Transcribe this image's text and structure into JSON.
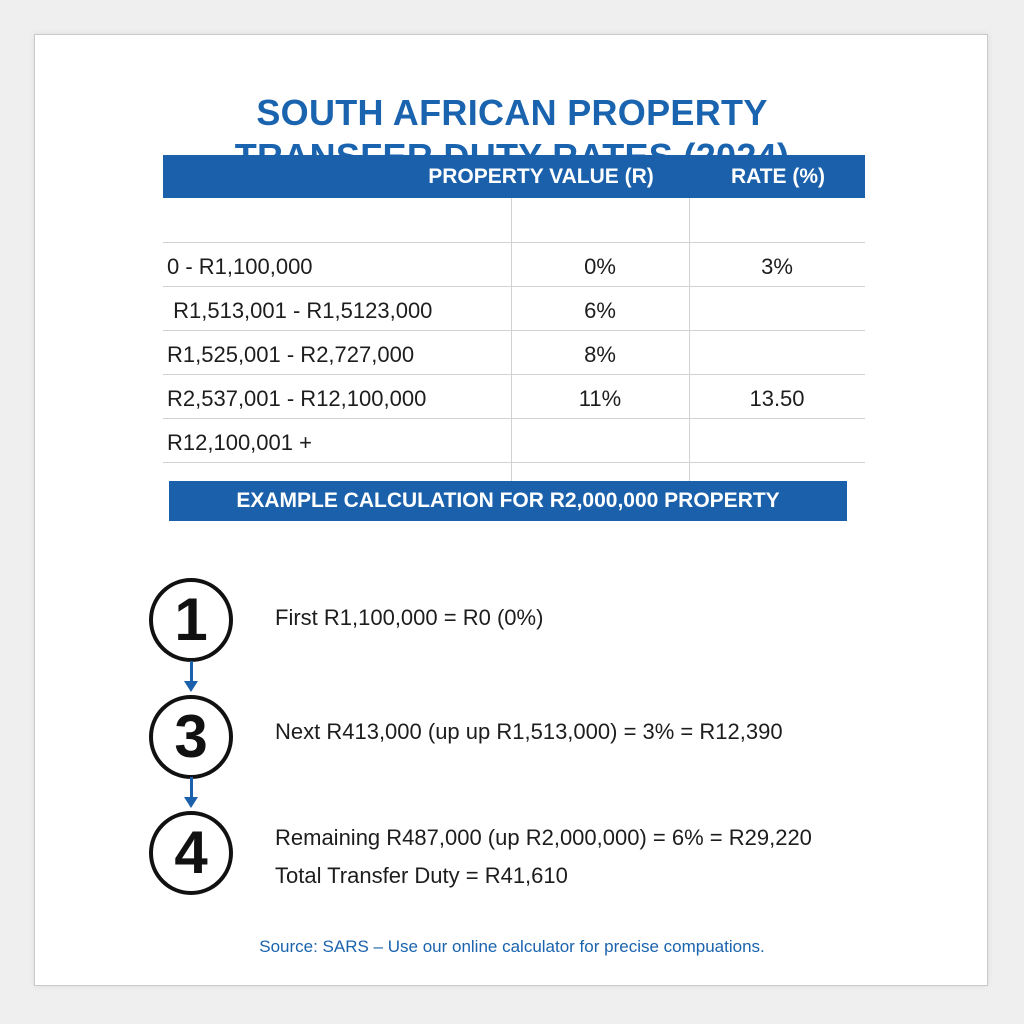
{
  "title": {
    "line1": "SOUTH AFRICAN PROPERTY",
    "line2": "TRANSFER DUTY RATES (2024)"
  },
  "rates_table": {
    "headers": {
      "property_value": "PROPERTY VALUE (R)",
      "rate": "RATE (%)"
    },
    "rows": [
      {
        "range": "0 - R1,100,000",
        "value": "0%",
        "rate": "3%"
      },
      {
        "range": " R1,513,001 - R1,5123,000",
        "value": "6%",
        "rate": ""
      },
      {
        "range": "R1,525,001 - R2,727,000",
        "value": "8%",
        "rate": ""
      },
      {
        "range": "R2,537,001 - R12,100,000",
        "value": "11%",
        "rate": "13.50"
      },
      {
        "range": "R12,100,001 +",
        "value": "",
        "rate": ""
      }
    ]
  },
  "example": {
    "banner": "EXAMPLE CALCULATION FOR R2,000,000 PROPERTY",
    "steps": [
      {
        "number": "1",
        "text": "First R1,100,000 = R0 (0%)"
      },
      {
        "number": "3",
        "text": "Next R413,000 (up up R1,513,000) = 3% = R12,390"
      },
      {
        "number": "4",
        "text": "Remaining R487,000 (up R2,000,000) = 6% = R29,220"
      }
    ],
    "total": "Total Transfer Duty = R41,610"
  },
  "source": "Source: SARS – Use our online calculator for precise compuations.",
  "colors": {
    "accent": "#1b60aa",
    "title": "#1a63ae",
    "text": "#1d1d1d"
  }
}
